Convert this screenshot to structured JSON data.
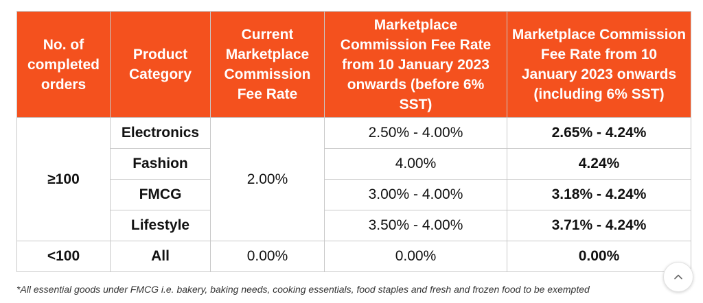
{
  "table": {
    "headers": [
      "No. of completed orders",
      "Product Category",
      "Current Marketplace Commission Fee Rate",
      "Marketplace Commission Fee Rate from 10 January 2023 onwards (before 6% SST)",
      "Marketplace Commission Fee Rate from 10 January 2023 onwards (including 6% SST)"
    ],
    "group_high": {
      "orders": "≥100",
      "current_rate": "2.00%",
      "rows": [
        {
          "category": "Electronics",
          "before_sst": "2.50% - 4.00%",
          "incl_sst": "2.65% - 4.24%"
        },
        {
          "category": "Fashion",
          "before_sst": "4.00%",
          "incl_sst": "4.24%"
        },
        {
          "category": "FMCG",
          "before_sst": "3.00% - 4.00%",
          "incl_sst": "3.18% - 4.24%"
        },
        {
          "category": "Lifestyle",
          "before_sst": "3.50% - 4.00%",
          "incl_sst": "3.71% - 4.24%"
        }
      ]
    },
    "group_low": {
      "orders": "<100",
      "category": "All",
      "current_rate": "0.00%",
      "before_sst": "0.00%",
      "incl_sst": "0.00%"
    }
  },
  "footnote": "*All essential goods under FMCG i.e. bakery, baking needs, cooking essentials, food staples and fresh and frozen food to be exempted",
  "header_color": "#f4511e",
  "scroll_top_icon": "chevron-up-icon"
}
